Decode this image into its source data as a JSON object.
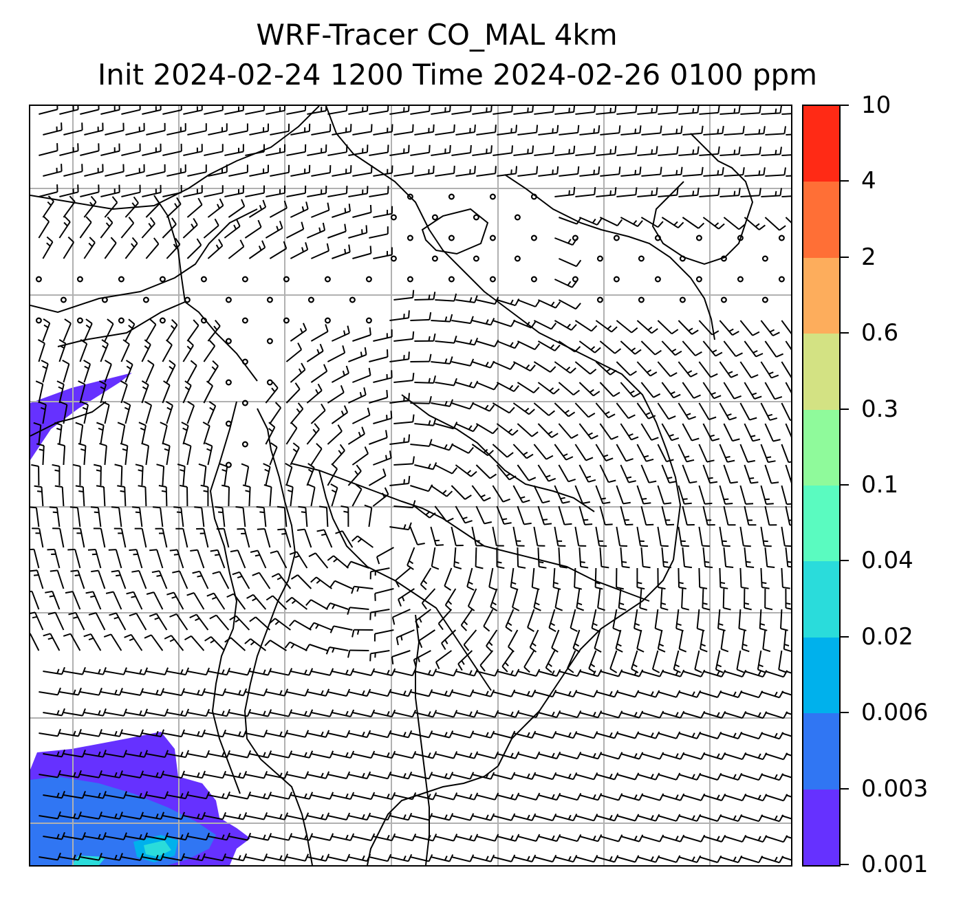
{
  "title": {
    "line1": "WRF-Tracer CO_MAL 4km",
    "line2": "Init 2024-02-24 1200 Time 2024-02-26 0100 ppm"
  },
  "colorbar": {
    "labels": [
      "10",
      "4",
      "2",
      "0.6",
      "0.3",
      "0.1",
      "0.04",
      "0.02",
      "0.006",
      "0.003",
      "0.001"
    ],
    "colors_top_to_bottom": [
      "#ff2a15",
      "#ff6f36",
      "#fdad5c",
      "#d3e283",
      "#8ffa9b",
      "#5afbc0",
      "#2adcdb",
      "#00b1ec",
      "#3076f3",
      "#6631ff"
    ]
  },
  "map": {
    "field": "CO_MAL tracer concentration with wind barbs",
    "gridlines": true,
    "coastline_color": "#000000",
    "plume_colors": [
      "#6631ff",
      "#3076f3",
      "#00b1ec",
      "#2adcdb"
    ]
  }
}
